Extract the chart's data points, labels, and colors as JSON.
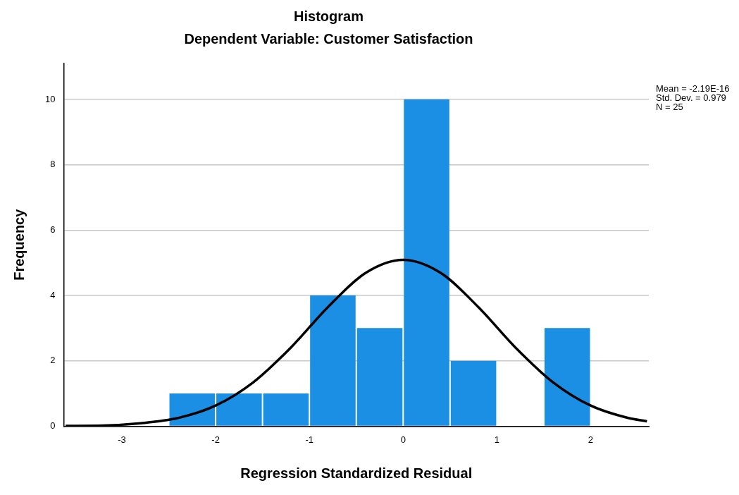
{
  "chart_data": {
    "type": "histogram",
    "title": "Histogram",
    "subtitle": "Dependent Variable: Customer Satisfaction",
    "xlabel": "Regression Standardized Residual",
    "ylabel": "Frequency",
    "series": [
      {
        "type": "histogram",
        "bins": [
          -2.5,
          -2,
          -1.5,
          -1,
          -0.5,
          0,
          0.5,
          1,
          1.5,
          2
        ],
        "values": [
          1,
          1,
          1,
          4,
          3,
          10,
          2,
          0,
          3
        ],
        "color": "#1a8fe3"
      },
      {
        "type": "line",
        "x": [
          -3.6,
          -3.2,
          -2.8,
          -2.4,
          -2.0,
          -1.6,
          -1.2,
          -0.8,
          -0.4,
          0,
          0.4,
          0.8,
          1.2,
          1.6,
          2.0,
          2.4,
          2.6
        ],
        "values": [
          0.01,
          0.02,
          0.09,
          0.25,
          0.63,
          1.34,
          2.4,
          3.65,
          4.69,
          5.09,
          4.69,
          3.65,
          2.4,
          1.34,
          0.63,
          0.25,
          0.15
        ],
        "color": "#000000"
      }
    ],
    "xlim": [
      -3.62,
      2.62
    ],
    "xticks": [
      -3,
      -2,
      -1,
      0,
      1,
      2
    ],
    "ylim": [
      0,
      11.1
    ],
    "yticks": [
      0,
      2,
      4,
      6,
      8,
      10
    ],
    "grid": "y",
    "legend": false,
    "marker": "none",
    "line_style": "solid",
    "annotations": [
      "Mean = -2.19E-16",
      "Std. Dev. = 0.979",
      "N = 25"
    ]
  }
}
